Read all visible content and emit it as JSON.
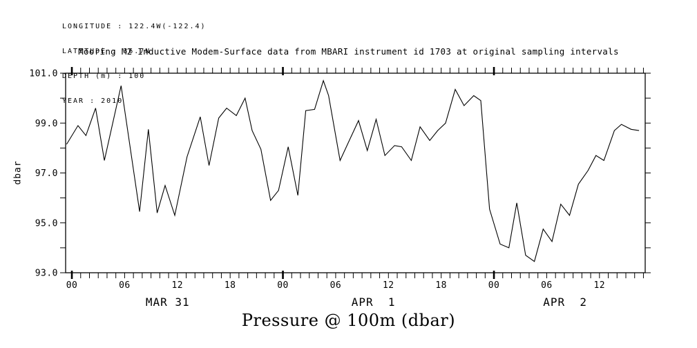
{
  "metadata": {
    "lines": [
      "LONGITUDE : 122.4W(-122.4)",
      "LATITUDE : 36.7N",
      "DEPTH (m) : 100",
      "YEAR : 2010"
    ]
  },
  "chart_data": {
    "type": "line",
    "title": "Mooring M2 Inductive Modem-Surface data from MBARI instrument id 1703 at original sampling intervals",
    "ylabel": "dbar",
    "caption": "Pressure @ 100m (dbar)",
    "ylim": [
      93.0,
      101.0
    ],
    "yticks_major": [
      93.0,
      95.0,
      97.0,
      99.0,
      101.0
    ],
    "ytick_labels": [
      "93.0",
      "95.0",
      "97.0",
      "99.0",
      "101.0"
    ],
    "ytick_minor_step": 1.0,
    "x_unit": "hours from MAR 31 00:00",
    "x_hours_range": [
      -0.71,
      65.2
    ],
    "xtick_minor_step_hours": 1,
    "xticks": [
      {
        "hour": 0,
        "label": "00",
        "bold": true
      },
      {
        "hour": 6,
        "label": "06",
        "bold": false
      },
      {
        "hour": 12,
        "label": "12",
        "bold": false
      },
      {
        "hour": 18,
        "label": "18",
        "bold": false
      },
      {
        "hour": 24,
        "label": "00",
        "bold": true
      },
      {
        "hour": 30,
        "label": "06",
        "bold": false
      },
      {
        "hour": 36,
        "label": "12",
        "bold": false
      },
      {
        "hour": 42,
        "label": "18",
        "bold": false
      },
      {
        "hour": 48,
        "label": "00",
        "bold": true
      },
      {
        "hour": 54,
        "label": "06",
        "bold": false
      },
      {
        "hour": 60,
        "label": "12",
        "bold": false
      }
    ],
    "date_labels": [
      {
        "hour": 10.9,
        "label": "MAR 31"
      },
      {
        "hour": 34.3,
        "label": "APR  1"
      },
      {
        "hour": 56.1,
        "label": "APR  2"
      }
    ],
    "grid": false,
    "legend": null,
    "line_color": "#000000",
    "series": [
      {
        "name": "pressure_dbar",
        "points": [
          [
            -0.6,
            98.15
          ],
          [
            0.7,
            98.9
          ],
          [
            1.6,
            98.5
          ],
          [
            2.7,
            99.6
          ],
          [
            3.7,
            97.5
          ],
          [
            5.6,
            100.5
          ],
          [
            7.7,
            95.45
          ],
          [
            8.7,
            98.75
          ],
          [
            9.7,
            95.4
          ],
          [
            10.6,
            96.5
          ],
          [
            11.7,
            95.3
          ],
          [
            13.1,
            97.65
          ],
          [
            14.6,
            99.25
          ],
          [
            15.6,
            97.3
          ],
          [
            16.7,
            99.2
          ],
          [
            17.6,
            99.6
          ],
          [
            18.7,
            99.3
          ],
          [
            19.7,
            100.0
          ],
          [
            20.5,
            98.7
          ],
          [
            21.5,
            97.95
          ],
          [
            22.6,
            95.9
          ],
          [
            23.5,
            96.3
          ],
          [
            24.6,
            98.05
          ],
          [
            25.7,
            96.1
          ],
          [
            26.6,
            99.5
          ],
          [
            27.6,
            99.55
          ],
          [
            28.6,
            100.7
          ],
          [
            29.2,
            100.1
          ],
          [
            30.5,
            97.5
          ],
          [
            32.6,
            99.1
          ],
          [
            33.6,
            97.9
          ],
          [
            34.6,
            99.15
          ],
          [
            35.6,
            97.7
          ],
          [
            36.7,
            98.1
          ],
          [
            37.5,
            98.05
          ],
          [
            38.6,
            97.5
          ],
          [
            39.6,
            98.85
          ],
          [
            40.7,
            98.3
          ],
          [
            41.6,
            98.7
          ],
          [
            42.5,
            99.0
          ],
          [
            43.6,
            100.35
          ],
          [
            44.6,
            99.7
          ],
          [
            45.7,
            100.1
          ],
          [
            46.5,
            99.9
          ],
          [
            47.5,
            95.55
          ],
          [
            48.7,
            94.15
          ],
          [
            49.7,
            94.0
          ],
          [
            50.6,
            95.8
          ],
          [
            51.6,
            93.7
          ],
          [
            52.6,
            93.45
          ],
          [
            53.6,
            94.75
          ],
          [
            54.6,
            94.25
          ],
          [
            55.6,
            95.75
          ],
          [
            56.6,
            95.3
          ],
          [
            57.6,
            96.55
          ],
          [
            58.7,
            97.1
          ],
          [
            59.6,
            97.7
          ],
          [
            60.5,
            97.5
          ],
          [
            61.7,
            98.7
          ],
          [
            62.5,
            98.95
          ],
          [
            63.6,
            98.75
          ],
          [
            64.5,
            98.7
          ]
        ]
      }
    ]
  }
}
